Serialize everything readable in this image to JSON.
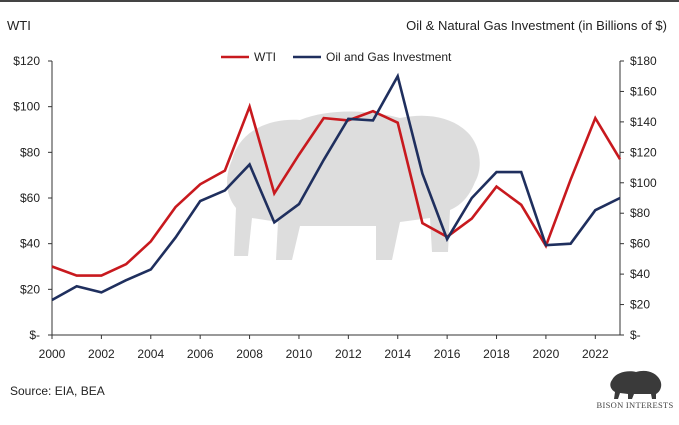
{
  "header": {
    "left_title": "WTI",
    "right_title": "Oil & Natural Gas Investment (in Billions of $)"
  },
  "footer": {
    "source": "Source: EIA, BEA",
    "logo_text": "BISON INTERESTS"
  },
  "colors": {
    "wti": "#c8191e",
    "investment": "#1f2f5e",
    "axis": "#333333",
    "watermark": "#d6d6d6"
  },
  "chart_data": {
    "type": "line",
    "x": [
      2000,
      2001,
      2002,
      2003,
      2004,
      2005,
      2006,
      2007,
      2008,
      2009,
      2010,
      2011,
      2012,
      2013,
      2014,
      2015,
      2016,
      2017,
      2018,
      2019,
      2020,
      2021,
      2022,
      2023
    ],
    "x_ticks": [
      "2000",
      "2002",
      "2004",
      "2006",
      "2008",
      "2010",
      "2012",
      "2014",
      "2016",
      "2018",
      "2020",
      "2022"
    ],
    "series": [
      {
        "name": "WTI",
        "axis": "left",
        "values": [
          30,
          26,
          26,
          31,
          41,
          56,
          66,
          72,
          100,
          62,
          79,
          95,
          94,
          98,
          93,
          49,
          43,
          51,
          65,
          57,
          39,
          68,
          95,
          77
        ]
      },
      {
        "name": "Oil and Gas Investment",
        "axis": "right",
        "values": [
          23,
          32,
          28,
          36,
          43,
          64,
          88,
          95,
          112,
          74,
          86,
          115,
          142,
          141,
          170,
          106,
          63,
          90,
          107,
          107,
          59,
          60,
          82,
          90
        ]
      }
    ],
    "y_left": {
      "ylim": [
        0,
        120
      ],
      "ticks": [
        "$-",
        "$20",
        "$40",
        "$60",
        "$80",
        "$100",
        "$120"
      ]
    },
    "y_right": {
      "ylim": [
        0,
        180
      ],
      "ticks": [
        "$-",
        "$20",
        "$40",
        "$60",
        "$80",
        "$100",
        "$120",
        "$140",
        "$160",
        "$180"
      ]
    },
    "grid": false,
    "legend_position": "top-center"
  }
}
